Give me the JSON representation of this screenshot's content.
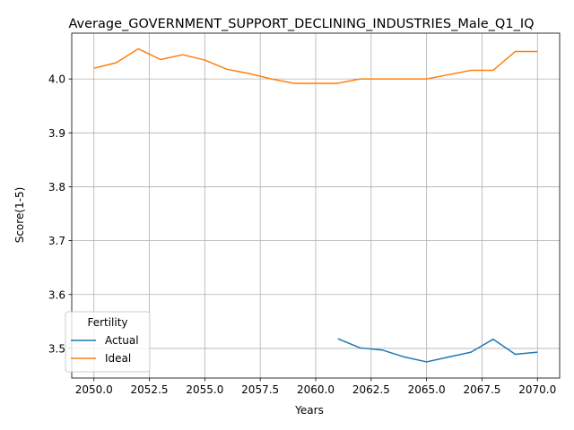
{
  "chart_data": {
    "type": "line",
    "title": "Average_GOVERNMENT_SUPPORT_DECLINING_INDUSTRIES_Male_Q1_IQ",
    "xlabel": "Years",
    "ylabel": "Score(1-5)",
    "xlim": [
      2049.0,
      2071.0
    ],
    "ylim": [
      3.445,
      4.085
    ],
    "xticks": [
      "2050.0",
      "2052.5",
      "2055.0",
      "2057.5",
      "2060.0",
      "2062.5",
      "2065.0",
      "2067.5",
      "2070.0"
    ],
    "yticks": [
      "3.5",
      "3.6",
      "3.7",
      "3.8",
      "3.9",
      "4.0"
    ],
    "grid": true,
    "legend": {
      "title": "Fertility",
      "placement": "lower-left"
    },
    "series": [
      {
        "name": "Actual",
        "color": "#1f77b4",
        "x": [
          2061,
          2062,
          2063,
          2064,
          2065,
          2066,
          2067,
          2068,
          2069,
          2070
        ],
        "y": [
          3.518,
          3.501,
          3.497,
          3.484,
          3.475,
          3.484,
          3.493,
          3.517,
          3.489,
          3.493
        ]
      },
      {
        "name": "Ideal",
        "color": "#ff7f0e",
        "x": [
          2050,
          2051,
          2052,
          2053,
          2054,
          2055,
          2056,
          2057,
          2058,
          2059,
          2060,
          2061,
          2062,
          2063,
          2064,
          2065,
          2066,
          2067,
          2068,
          2069,
          2070
        ],
        "y": [
          4.02,
          4.03,
          4.056,
          4.036,
          4.045,
          4.035,
          4.018,
          4.01,
          4.0,
          3.992,
          3.992,
          3.992,
          4.0,
          4.0,
          4.0,
          4.0,
          4.008,
          4.016,
          4.016,
          4.051,
          4.051
        ]
      }
    ]
  }
}
